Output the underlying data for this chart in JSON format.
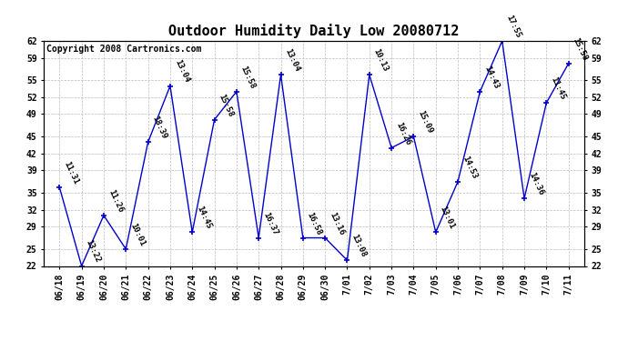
{
  "title": "Outdoor Humidity Daily Low 20080712",
  "copyright": "Copyright 2008 Cartronics.com",
  "x_labels": [
    "06/18",
    "06/19",
    "06/20",
    "06/21",
    "06/22",
    "06/23",
    "06/24",
    "06/25",
    "06/26",
    "06/27",
    "06/28",
    "06/29",
    "06/30",
    "7/01",
    "7/02",
    "7/03",
    "7/04",
    "7/05",
    "7/06",
    "7/07",
    "7/08",
    "7/09",
    "7/10",
    "7/11"
  ],
  "y_values": [
    36,
    22,
    31,
    25,
    44,
    54,
    28,
    48,
    53,
    27,
    56,
    27,
    27,
    23,
    56,
    43,
    45,
    28,
    37,
    53,
    62,
    34,
    51,
    58
  ],
  "annotations": [
    "11:31",
    "13:22",
    "11:26",
    "10:01",
    "18:39",
    "13:04",
    "14:45",
    "15:58",
    "15:58",
    "16:37",
    "13:04",
    "16:58",
    "13:16",
    "13:08",
    "10:13",
    "16:26",
    "15:09",
    "13:01",
    "14:53",
    "14:43",
    "17:55",
    "14:36",
    "11:45",
    "15:58"
  ],
  "ylim_min": 22,
  "ylim_max": 62,
  "yticks": [
    22,
    25,
    29,
    32,
    35,
    39,
    42,
    45,
    49,
    52,
    55,
    59,
    62
  ],
  "line_color": "#0000cc",
  "marker_color": "#0000cc",
  "bg_color": "#ffffff",
  "grid_color": "#bbbbbb",
  "title_fontsize": 11,
  "annot_fontsize": 6.5,
  "tick_fontsize": 7,
  "copyright_fontsize": 7
}
